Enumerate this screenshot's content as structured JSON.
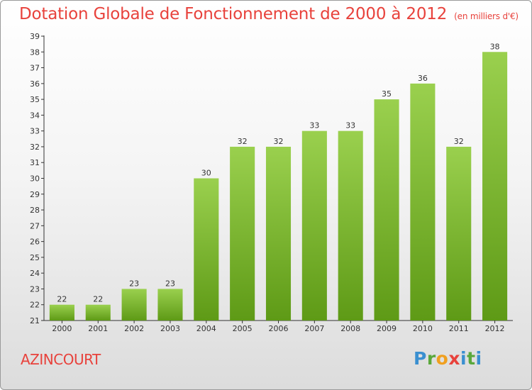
{
  "title": "Dotation Globale de Fonctionnement de 2000 à 2012",
  "subtitle": "(en milliers d'€)",
  "commune": "AZINCOURT",
  "logo": "Proxiti",
  "colors": {
    "title": "#e8423c",
    "bar_light": "#9ad04e",
    "bar_dark": "#5e9a16"
  },
  "chart_data": {
    "type": "bar",
    "title": "Dotation Globale de Fonctionnement de 2000 à 2012",
    "subtitle": "(en milliers d'€)",
    "categories": [
      "2000",
      "2001",
      "2002",
      "2003",
      "2004",
      "2005",
      "2006",
      "2007",
      "2008",
      "2009",
      "2010",
      "2011",
      "2012"
    ],
    "values": [
      22,
      22,
      23,
      23,
      30,
      32,
      32,
      33,
      33,
      35,
      36,
      32,
      38
    ],
    "ylim": [
      21,
      39
    ],
    "yticks": [
      21,
      22,
      23,
      24,
      25,
      26,
      27,
      28,
      29,
      30,
      31,
      32,
      33,
      34,
      35,
      36,
      37,
      38,
      39
    ],
    "xlabel": "",
    "ylabel": "",
    "grid": false,
    "data_labels": true
  }
}
